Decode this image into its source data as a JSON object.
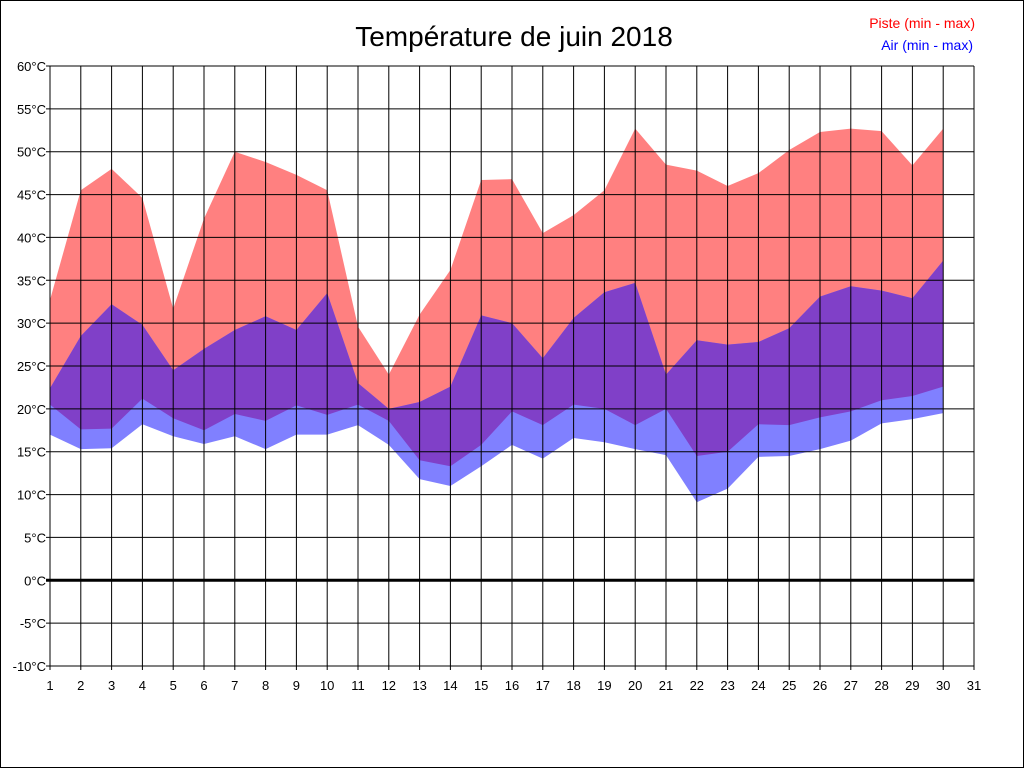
{
  "chart_data": {
    "type": "area",
    "title": "Température de juin 2018",
    "xlabel": "",
    "ylabel": "",
    "x_ticks": [
      "1",
      "2",
      "3",
      "4",
      "5",
      "6",
      "7",
      "8",
      "9",
      "10",
      "11",
      "12",
      "13",
      "14",
      "15",
      "16",
      "17",
      "18",
      "19",
      "20",
      "21",
      "22",
      "23",
      "24",
      "25",
      "26",
      "27",
      "28",
      "29",
      "30",
      "31"
    ],
    "y_ticks": [
      "60°C",
      "55°C",
      "50°C",
      "45°C",
      "40°C",
      "35°C",
      "30°C",
      "25°C",
      "20°C",
      "15°C",
      "10°C",
      "5°C",
      "0°C",
      "-5°C",
      "-10°C"
    ],
    "xlim": [
      1,
      31
    ],
    "ylim": [
      -10,
      60
    ],
    "grid": true,
    "legend_placement": "top-right",
    "x": [
      1,
      2,
      3,
      4,
      5,
      6,
      7,
      8,
      9,
      10,
      11,
      12,
      13,
      14,
      15,
      16,
      17,
      18,
      19,
      20,
      21,
      22,
      23,
      24,
      25,
      26,
      27,
      28,
      29,
      30
    ],
    "series": [
      {
        "name": "Piste (min - max)",
        "color": "#ff0000",
        "fill": "#ff8080",
        "min": [
          20.5,
          17.6,
          17.7,
          21.2,
          18.9,
          17.5,
          19.4,
          18.6,
          20.4,
          19.3,
          20.5,
          18.6,
          14.0,
          13.3,
          15.8,
          19.7,
          18.1,
          20.5,
          20.0,
          18.1,
          20.0,
          14.5,
          15.0,
          18.2,
          18.1,
          19.0,
          19.7,
          21.0,
          21.5,
          22.6
        ],
        "max": [
          32.7,
          45.5,
          48.0,
          44.6,
          31.7,
          42.2,
          50.0,
          48.8,
          47.3,
          45.5,
          29.6,
          24.0,
          31.0,
          36.2,
          46.7,
          46.8,
          40.5,
          42.6,
          45.5,
          52.7,
          48.5,
          47.8,
          46.0,
          47.5,
          50.2,
          52.3,
          52.7,
          52.4,
          48.4,
          52.7
        ]
      },
      {
        "name": "Air (min - max)",
        "color": "#0000ff",
        "fill": "#8080ff",
        "min": [
          17.0,
          15.3,
          15.4,
          18.2,
          16.8,
          15.9,
          16.8,
          15.3,
          17.0,
          17.0,
          18.1,
          15.8,
          11.8,
          11.0,
          13.3,
          15.8,
          14.2,
          16.6,
          16.1,
          15.3,
          14.6,
          9.1,
          10.7,
          14.4,
          14.5,
          15.3,
          16.3,
          18.3,
          18.8,
          19.5
        ],
        "max": [
          22.4,
          28.5,
          32.2,
          29.8,
          24.5,
          27.0,
          29.2,
          30.8,
          29.2,
          33.5,
          23.0,
          20.0,
          20.8,
          22.6,
          30.9,
          30.0,
          25.9,
          30.6,
          33.6,
          34.7,
          24.0,
          28.0,
          27.5,
          27.8,
          29.4,
          33.1,
          34.3,
          33.8,
          32.9,
          37.3
        ]
      }
    ],
    "overlap_color": "#8040c8"
  }
}
